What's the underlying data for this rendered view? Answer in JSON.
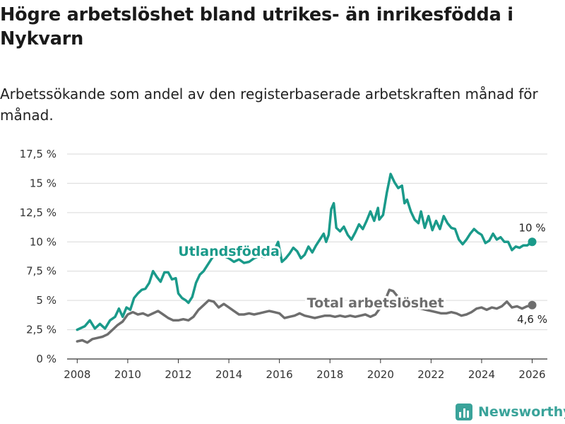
{
  "header": {
    "title": "Högre arbetslöshet bland utrikes- än inrikesfödda i Nykvarn",
    "subtitle": "Arbetssökande som andel av den registerbaserade arbetskraften månad för månad."
  },
  "branding": {
    "name": "Newsworthy",
    "color": "#3aa39a"
  },
  "chart_data": {
    "type": "line",
    "title": "Högre arbetslöshet bland utrikes- än inrikesfödda i Nykvarn",
    "subtitle": "Arbetssökande som andel av den registerbaserade arbetskraften månad för månad.",
    "xlabel": "",
    "ylabel": "",
    "xlim": [
      2007.6,
      2026.6
    ],
    "ylim": [
      0,
      17.5
    ],
    "x_ticks": [
      {
        "value": 2008,
        "label": "2008"
      },
      {
        "value": 2010,
        "label": "2010"
      },
      {
        "value": 2012,
        "label": "2012"
      },
      {
        "value": 2014,
        "label": "2014"
      },
      {
        "value": 2016,
        "label": "2016"
      },
      {
        "value": 2018,
        "label": "2018"
      },
      {
        "value": 2020,
        "label": "2020"
      },
      {
        "value": 2022,
        "label": "2022"
      },
      {
        "value": 2024,
        "label": "2024"
      },
      {
        "value": 2026,
        "label": "2026"
      }
    ],
    "y_ticks": [
      {
        "value": 0,
        "label": "0 %"
      },
      {
        "value": 2.5,
        "label": "2,5 %"
      },
      {
        "value": 5,
        "label": "5 %"
      },
      {
        "value": 7.5,
        "label": "7,5 %"
      },
      {
        "value": 10,
        "label": "10 %"
      },
      {
        "value": 12.5,
        "label": "12,5 %"
      },
      {
        "value": 15,
        "label": "15 %"
      },
      {
        "value": 17.5,
        "label": "17,5 %"
      }
    ],
    "grid": true,
    "series": [
      {
        "name": "Utlandsfödda",
        "color": "#1a9a8a",
        "label": "Utlandsfödda",
        "label_at": [
          2014.0,
          8.8
        ],
        "end_label": "10 %",
        "points": [
          [
            2008.0,
            2.5
          ],
          [
            2008.3,
            2.8
          ],
          [
            2008.5,
            3.3
          ],
          [
            2008.7,
            2.6
          ],
          [
            2008.9,
            3.0
          ],
          [
            2009.1,
            2.6
          ],
          [
            2009.3,
            3.3
          ],
          [
            2009.5,
            3.6
          ],
          [
            2009.65,
            4.3
          ],
          [
            2009.8,
            3.6
          ],
          [
            2009.95,
            4.4
          ],
          [
            2010.1,
            4.2
          ],
          [
            2010.25,
            5.2
          ],
          [
            2010.4,
            5.6
          ],
          [
            2010.55,
            5.9
          ],
          [
            2010.7,
            6.0
          ],
          [
            2010.85,
            6.5
          ],
          [
            2011.0,
            7.5
          ],
          [
            2011.15,
            7.0
          ],
          [
            2011.3,
            6.6
          ],
          [
            2011.45,
            7.4
          ],
          [
            2011.6,
            7.4
          ],
          [
            2011.75,
            6.8
          ],
          [
            2011.9,
            6.9
          ],
          [
            2012.0,
            5.6
          ],
          [
            2012.15,
            5.2
          ],
          [
            2012.3,
            5.0
          ],
          [
            2012.4,
            4.8
          ],
          [
            2012.55,
            5.3
          ],
          [
            2012.7,
            6.5
          ],
          [
            2012.85,
            7.2
          ],
          [
            2013.0,
            7.5
          ],
          [
            2013.15,
            8.0
          ],
          [
            2013.3,
            8.5
          ],
          [
            2013.45,
            9.0
          ],
          [
            2013.6,
            9.2
          ],
          [
            2013.8,
            8.8
          ],
          [
            2014.0,
            8.6
          ],
          [
            2014.2,
            8.3
          ],
          [
            2014.4,
            8.5
          ],
          [
            2014.6,
            8.2
          ],
          [
            2014.8,
            8.3
          ],
          [
            2015.0,
            8.6
          ],
          [
            2015.2,
            8.8
          ],
          [
            2015.4,
            8.7
          ],
          [
            2015.6,
            9.0
          ],
          [
            2015.8,
            9.3
          ],
          [
            2015.95,
            10.0
          ],
          [
            2016.1,
            8.3
          ],
          [
            2016.25,
            8.6
          ],
          [
            2016.4,
            9.0
          ],
          [
            2016.55,
            9.5
          ],
          [
            2016.7,
            9.2
          ],
          [
            2016.85,
            8.6
          ],
          [
            2017.0,
            8.9
          ],
          [
            2017.15,
            9.6
          ],
          [
            2017.3,
            9.1
          ],
          [
            2017.45,
            9.7
          ],
          [
            2017.6,
            10.2
          ],
          [
            2017.75,
            10.7
          ],
          [
            2017.85,
            10.0
          ],
          [
            2017.95,
            10.6
          ],
          [
            2018.05,
            12.8
          ],
          [
            2018.15,
            13.3
          ],
          [
            2018.25,
            11.2
          ],
          [
            2018.4,
            10.9
          ],
          [
            2018.55,
            11.3
          ],
          [
            2018.7,
            10.6
          ],
          [
            2018.85,
            10.2
          ],
          [
            2019.0,
            10.8
          ],
          [
            2019.15,
            11.5
          ],
          [
            2019.3,
            11.1
          ],
          [
            2019.45,
            11.8
          ],
          [
            2019.6,
            12.6
          ],
          [
            2019.75,
            11.8
          ],
          [
            2019.9,
            12.9
          ],
          [
            2019.95,
            11.9
          ],
          [
            2020.1,
            12.3
          ],
          [
            2020.25,
            14.2
          ],
          [
            2020.4,
            15.8
          ],
          [
            2020.55,
            15.1
          ],
          [
            2020.7,
            14.6
          ],
          [
            2020.85,
            14.8
          ],
          [
            2020.95,
            13.3
          ],
          [
            2021.05,
            13.6
          ],
          [
            2021.2,
            12.6
          ],
          [
            2021.35,
            11.9
          ],
          [
            2021.5,
            11.6
          ],
          [
            2021.6,
            12.6
          ],
          [
            2021.75,
            11.2
          ],
          [
            2021.9,
            12.2
          ],
          [
            2022.05,
            11.0
          ],
          [
            2022.2,
            11.8
          ],
          [
            2022.35,
            11.1
          ],
          [
            2022.5,
            12.2
          ],
          [
            2022.65,
            11.6
          ],
          [
            2022.8,
            11.2
          ],
          [
            2022.95,
            11.1
          ],
          [
            2023.1,
            10.2
          ],
          [
            2023.25,
            9.8
          ],
          [
            2023.4,
            10.2
          ],
          [
            2023.55,
            10.7
          ],
          [
            2023.7,
            11.1
          ],
          [
            2023.85,
            10.8
          ],
          [
            2024.0,
            10.6
          ],
          [
            2024.15,
            9.9
          ],
          [
            2024.3,
            10.1
          ],
          [
            2024.45,
            10.7
          ],
          [
            2024.6,
            10.2
          ],
          [
            2024.75,
            10.4
          ],
          [
            2024.9,
            10.0
          ],
          [
            2025.05,
            10.0
          ],
          [
            2025.2,
            9.3
          ],
          [
            2025.35,
            9.6
          ],
          [
            2025.5,
            9.5
          ],
          [
            2025.65,
            9.7
          ],
          [
            2025.8,
            9.7
          ],
          [
            2026.0,
            10.0
          ]
        ]
      },
      {
        "name": "Total arbetslöshet",
        "color": "#6e6e6e",
        "label": "Total arbetslöshet",
        "label_at": [
          2019.8,
          4.4
        ],
        "end_label": "4,6 %",
        "points": [
          [
            2008.0,
            1.5
          ],
          [
            2008.2,
            1.6
          ],
          [
            2008.4,
            1.4
          ],
          [
            2008.6,
            1.7
          ],
          [
            2008.8,
            1.8
          ],
          [
            2009.0,
            1.9
          ],
          [
            2009.2,
            2.1
          ],
          [
            2009.4,
            2.5
          ],
          [
            2009.6,
            2.9
          ],
          [
            2009.8,
            3.2
          ],
          [
            2010.0,
            3.8
          ],
          [
            2010.2,
            4.0
          ],
          [
            2010.4,
            3.8
          ],
          [
            2010.6,
            3.9
          ],
          [
            2010.8,
            3.7
          ],
          [
            2011.0,
            3.9
          ],
          [
            2011.2,
            4.1
          ],
          [
            2011.4,
            3.8
          ],
          [
            2011.6,
            3.5
          ],
          [
            2011.8,
            3.3
          ],
          [
            2012.0,
            3.3
          ],
          [
            2012.2,
            3.4
          ],
          [
            2012.4,
            3.3
          ],
          [
            2012.6,
            3.6
          ],
          [
            2012.8,
            4.2
          ],
          [
            2013.0,
            4.6
          ],
          [
            2013.2,
            5.0
          ],
          [
            2013.4,
            4.9
          ],
          [
            2013.6,
            4.4
          ],
          [
            2013.8,
            4.7
          ],
          [
            2014.0,
            4.4
          ],
          [
            2014.2,
            4.1
          ],
          [
            2014.4,
            3.8
          ],
          [
            2014.6,
            3.8
          ],
          [
            2014.8,
            3.9
          ],
          [
            2015.0,
            3.8
          ],
          [
            2015.2,
            3.9
          ],
          [
            2015.4,
            4.0
          ],
          [
            2015.6,
            4.1
          ],
          [
            2015.8,
            4.0
          ],
          [
            2016.0,
            3.9
          ],
          [
            2016.2,
            3.5
          ],
          [
            2016.4,
            3.6
          ],
          [
            2016.6,
            3.7
          ],
          [
            2016.8,
            3.9
          ],
          [
            2017.0,
            3.7
          ],
          [
            2017.2,
            3.6
          ],
          [
            2017.4,
            3.5
          ],
          [
            2017.6,
            3.6
          ],
          [
            2017.8,
            3.7
          ],
          [
            2018.0,
            3.7
          ],
          [
            2018.2,
            3.6
          ],
          [
            2018.4,
            3.7
          ],
          [
            2018.6,
            3.6
          ],
          [
            2018.8,
            3.7
          ],
          [
            2019.0,
            3.6
          ],
          [
            2019.2,
            3.7
          ],
          [
            2019.4,
            3.8
          ],
          [
            2019.6,
            3.6
          ],
          [
            2019.8,
            3.8
          ],
          [
            2020.0,
            4.4
          ],
          [
            2020.2,
            5.1
          ],
          [
            2020.35,
            5.9
          ],
          [
            2020.5,
            5.8
          ],
          [
            2020.65,
            5.4
          ],
          [
            2020.8,
            5.1
          ],
          [
            2021.0,
            4.9
          ],
          [
            2021.2,
            4.6
          ],
          [
            2021.4,
            4.4
          ],
          [
            2021.6,
            4.3
          ],
          [
            2021.8,
            4.2
          ],
          [
            2022.0,
            4.1
          ],
          [
            2022.2,
            4.0
          ],
          [
            2022.4,
            3.9
          ],
          [
            2022.6,
            3.9
          ],
          [
            2022.8,
            4.0
          ],
          [
            2023.0,
            3.9
          ],
          [
            2023.2,
            3.7
          ],
          [
            2023.4,
            3.8
          ],
          [
            2023.6,
            4.0
          ],
          [
            2023.8,
            4.3
          ],
          [
            2024.0,
            4.4
          ],
          [
            2024.2,
            4.2
          ],
          [
            2024.4,
            4.4
          ],
          [
            2024.6,
            4.3
          ],
          [
            2024.8,
            4.5
          ],
          [
            2025.0,
            4.9
          ],
          [
            2025.2,
            4.4
          ],
          [
            2025.4,
            4.5
          ],
          [
            2025.6,
            4.3
          ],
          [
            2025.8,
            4.5
          ],
          [
            2026.0,
            4.6
          ]
        ]
      }
    ]
  }
}
